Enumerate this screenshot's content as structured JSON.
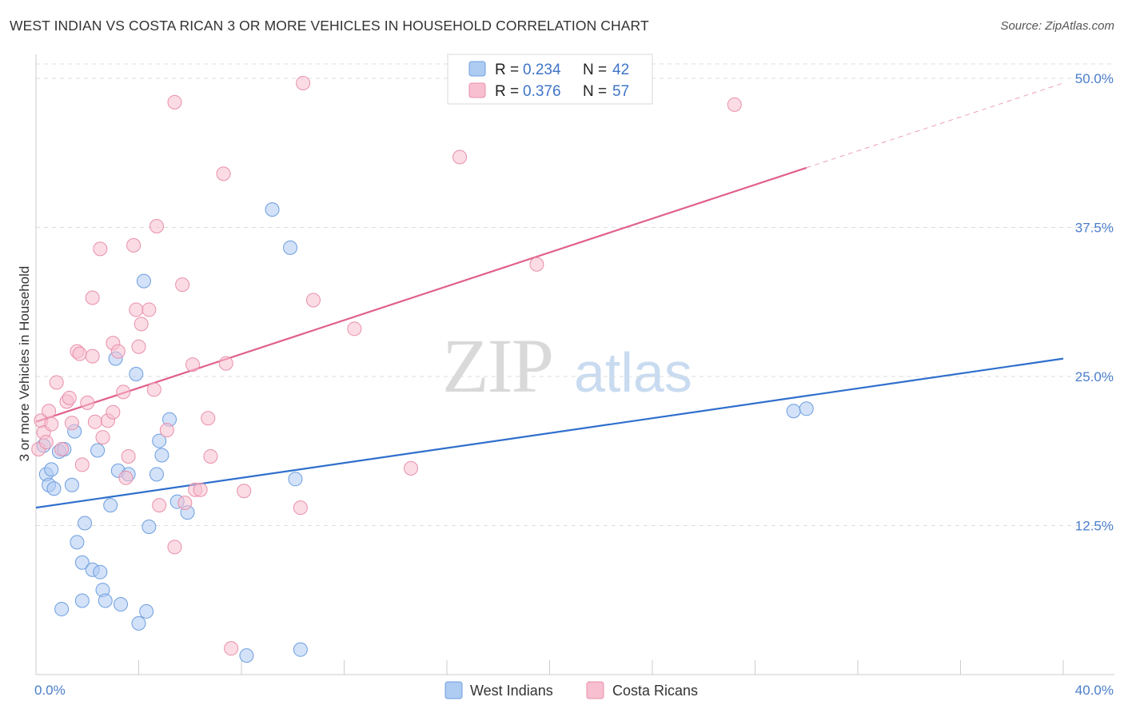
{
  "title": "WEST INDIAN VS COSTA RICAN 3 OR MORE VEHICLES IN HOUSEHOLD CORRELATION CHART",
  "source": "Source: ZipAtlas.com",
  "watermark": {
    "zip": "ZIP",
    "atlas": "atlas"
  },
  "colors": {
    "blue_fill": "#aecbf2",
    "blue_stroke": "#6d9ee0",
    "blue_line": "#2f6fcc",
    "pink_fill": "#f7bfd0",
    "pink_stroke": "#e98faa",
    "pink_line": "#e0608a",
    "axis_label": "#4a7ecb",
    "grid": "#dddddd"
  },
  "legend": {
    "rows": [
      {
        "r_label": "R =",
        "r_value": "0.234",
        "n_label": "N =",
        "n_value": "42",
        "color": "blue"
      },
      {
        "r_label": "R =",
        "r_value": "0.376",
        "n_label": "N =",
        "n_value": "57",
        "color": "pink"
      }
    ]
  },
  "bottom_legend": [
    {
      "label": "West Indians",
      "color": "blue"
    },
    {
      "label": "Costa Ricans",
      "color": "pink"
    }
  ],
  "chart_data": {
    "type": "scatter",
    "title": "WEST INDIAN VS COSTA RICAN 3 OR MORE VEHICLES IN HOUSEHOLD CORRELATION CHART",
    "xlabel": "",
    "ylabel": "3 or more Vehicles in Household",
    "xlim": [
      0,
      40
    ],
    "ylim": [
      0,
      50
    ],
    "x_tick_labels": [
      {
        "value": 0,
        "label": "0.0%"
      },
      {
        "value": 40,
        "label": "40.0%"
      }
    ],
    "y_tick_labels": [
      {
        "value": 12.5,
        "label": "12.5%"
      },
      {
        "value": 25,
        "label": "25.0%"
      },
      {
        "value": 37.5,
        "label": "37.5%"
      },
      {
        "value": 50,
        "label": "50.0%"
      }
    ],
    "grid": true,
    "series": [
      {
        "name": "West Indians",
        "color": "blue",
        "trend": {
          "x": [
            0,
            40
          ],
          "y": [
            14.0,
            26.5
          ],
          "dashed_from": null
        },
        "points": [
          [
            0.3,
            19.2
          ],
          [
            0.4,
            16.8
          ],
          [
            0.5,
            15.9
          ],
          [
            0.6,
            17.2
          ],
          [
            0.7,
            15.6
          ],
          [
            0.9,
            18.7
          ],
          [
            1.1,
            18.9
          ],
          [
            1.4,
            15.9
          ],
          [
            1.5,
            20.4
          ],
          [
            1.6,
            11.1
          ],
          [
            1.8,
            9.4
          ],
          [
            1.9,
            12.7
          ],
          [
            2.2,
            8.8
          ],
          [
            2.4,
            18.8
          ],
          [
            2.5,
            8.6
          ],
          [
            2.6,
            7.1
          ],
          [
            2.7,
            6.2
          ],
          [
            2.9,
            14.2
          ],
          [
            3.1,
            26.5
          ],
          [
            3.2,
            17.1
          ],
          [
            3.3,
            5.9
          ],
          [
            3.6,
            16.8
          ],
          [
            3.9,
            25.2
          ],
          [
            4.0,
            4.3
          ],
          [
            4.2,
            33.0
          ],
          [
            4.3,
            5.3
          ],
          [
            4.4,
            12.4
          ],
          [
            4.7,
            16.8
          ],
          [
            4.8,
            19.6
          ],
          [
            4.9,
            18.4
          ],
          [
            5.2,
            21.4
          ],
          [
            5.5,
            14.5
          ],
          [
            5.9,
            13.6
          ],
          [
            8.2,
            1.6
          ],
          [
            9.2,
            39.0
          ],
          [
            9.9,
            35.8
          ],
          [
            10.1,
            16.4
          ],
          [
            10.3,
            2.1
          ],
          [
            29.5,
            22.1
          ],
          [
            30.0,
            22.3
          ],
          [
            1.0,
            5.5
          ],
          [
            1.8,
            6.2
          ]
        ]
      },
      {
        "name": "Costa Ricans",
        "color": "pink",
        "trend": {
          "x": [
            0,
            30
          ],
          "y": [
            21.2,
            42.5
          ],
          "dashed_to": [
            40,
            49.6
          ]
        },
        "points": [
          [
            0.2,
            21.3
          ],
          [
            0.3,
            20.3
          ],
          [
            0.5,
            22.1
          ],
          [
            0.6,
            21.0
          ],
          [
            0.8,
            24.5
          ],
          [
            1.0,
            18.9
          ],
          [
            1.2,
            22.9
          ],
          [
            1.3,
            23.2
          ],
          [
            1.4,
            21.1
          ],
          [
            1.6,
            27.1
          ],
          [
            1.7,
            26.9
          ],
          [
            1.8,
            17.6
          ],
          [
            2.0,
            22.8
          ],
          [
            2.2,
            26.7
          ],
          [
            2.3,
            21.2
          ],
          [
            2.5,
            35.7
          ],
          [
            2.6,
            19.9
          ],
          [
            2.8,
            21.3
          ],
          [
            2.2,
            31.6
          ],
          [
            3.0,
            22.0
          ],
          [
            3.0,
            27.8
          ],
          [
            3.2,
            27.1
          ],
          [
            3.4,
            23.7
          ],
          [
            3.5,
            16.5
          ],
          [
            3.6,
            18.3
          ],
          [
            3.8,
            36.0
          ],
          [
            3.9,
            30.6
          ],
          [
            4.0,
            27.5
          ],
          [
            4.1,
            29.4
          ],
          [
            4.4,
            30.6
          ],
          [
            4.6,
            23.9
          ],
          [
            4.7,
            37.6
          ],
          [
            4.8,
            14.2
          ],
          [
            5.1,
            20.5
          ],
          [
            5.4,
            10.7
          ],
          [
            5.4,
            48.0
          ],
          [
            5.7,
            32.7
          ],
          [
            5.8,
            14.4
          ],
          [
            6.1,
            26.0
          ],
          [
            6.2,
            15.5
          ],
          [
            6.4,
            15.5
          ],
          [
            6.7,
            21.5
          ],
          [
            6.8,
            18.3
          ],
          [
            7.3,
            42.0
          ],
          [
            7.4,
            26.1
          ],
          [
            7.6,
            2.2
          ],
          [
            8.1,
            15.4
          ],
          [
            10.3,
            14.0
          ],
          [
            10.4,
            49.6
          ],
          [
            10.8,
            31.4
          ],
          [
            12.4,
            29.0
          ],
          [
            14.6,
            17.3
          ],
          [
            16.5,
            43.4
          ],
          [
            19.5,
            34.4
          ],
          [
            27.2,
            47.8
          ],
          [
            0.1,
            18.9
          ],
          [
            0.4,
            19.5
          ]
        ]
      }
    ]
  }
}
